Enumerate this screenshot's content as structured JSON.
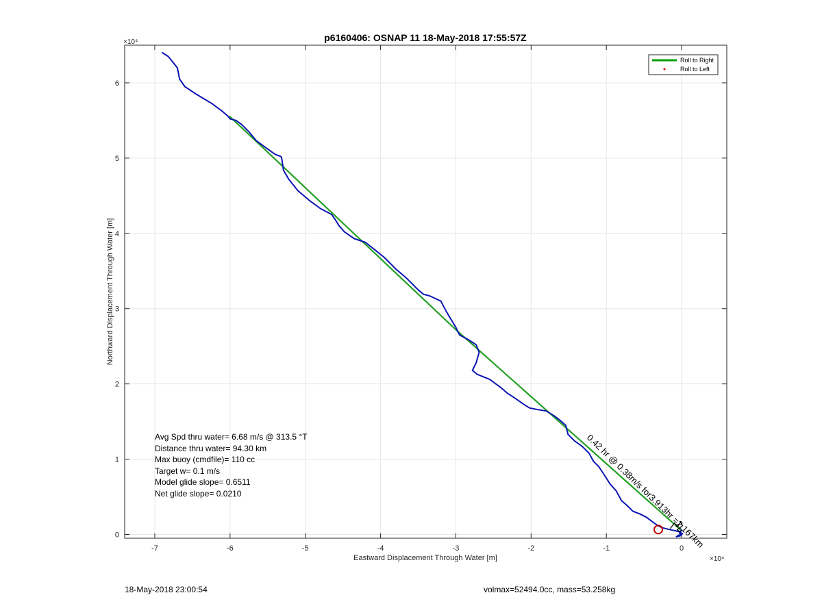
{
  "chart_data": {
    "type": "line",
    "title": "p6160406: OSNAP 11 18-May-2018 17:55:57Z",
    "xlabel": "Eastward Displacement Through Water [m]",
    "ylabel": "Northward Displacement Through Water [m]",
    "x_exponent_label": "×10⁴",
    "y_exponent_label": "×10⁴",
    "xlim": [
      -74000,
      6000
    ],
    "ylim": [
      -500,
      65000
    ],
    "x_ticks": [
      -70000,
      -60000,
      -50000,
      -40000,
      -30000,
      -20000,
      -10000,
      0
    ],
    "x_tick_labels": [
      "-7",
      "-6",
      "-5",
      "-4",
      "-3",
      "-2",
      "-1",
      "0"
    ],
    "y_ticks": [
      0,
      10000,
      20000,
      30000,
      40000,
      50000,
      60000
    ],
    "y_tick_labels": [
      "0",
      "1",
      "2",
      "3",
      "4",
      "5",
      "6"
    ],
    "grid": true,
    "legend_position": "top-right",
    "legend": [
      {
        "label": "Roll to Right",
        "color": "#00a000",
        "marker": "line"
      },
      {
        "label": "Roll to Left",
        "color": "#e00000",
        "marker": "dot"
      }
    ],
    "series": [
      {
        "name": "Roll to Right",
        "color": "#22a022",
        "x": [
          -60000,
          -30000,
          -15500,
          0
        ],
        "y": [
          55500,
          27200,
          14300,
          500
        ]
      },
      {
        "color": "#0a14b4",
        "x": [
          -69000,
          -68200,
          -67000,
          -66700,
          -66000,
          -64500,
          -62500,
          -61000,
          -60200,
          -60000,
          -59200,
          -58500,
          -57500,
          -56500,
          -55000,
          -54000,
          -53200,
          -53100,
          -52900,
          -52200,
          -51000,
          -49500,
          -48000,
          -46500,
          -46000,
          -45500,
          -44800,
          -43500,
          -42000,
          -41000,
          -39500,
          -38000,
          -36500,
          -35000,
          -34300,
          -33500,
          -32000,
          -31200,
          -30000,
          -29500,
          -28200,
          -27300,
          -26900,
          -27300,
          -27800,
          -27200,
          -25500,
          -24000,
          -23200,
          -22000,
          -21000,
          -20200,
          -19200,
          -18000,
          -17000,
          -16200,
          -15400,
          -15100,
          -14200,
          -13200,
          -12300,
          -11700,
          -11000,
          -10400,
          -9500,
          -8700,
          -8000,
          -7200,
          -6500,
          -5500,
          -4700,
          -3900,
          -3200,
          -2600,
          -1800,
          -900,
          -300,
          100,
          -200,
          -700,
          -400,
          0,
          -300,
          0
        ],
        "y": [
          64000,
          63500,
          62000,
          60500,
          59500,
          58500,
          57300,
          56200,
          55500,
          55200,
          55000,
          54500,
          53500,
          52300,
          51200,
          50500,
          50200,
          49800,
          48400,
          47200,
          45700,
          44400,
          43300,
          42500,
          41800,
          41000,
          40200,
          39300,
          38800,
          38000,
          36800,
          35300,
          34000,
          32500,
          31900,
          31700,
          31000,
          29500,
          27500,
          26500,
          25800,
          25200,
          24200,
          22800,
          21800,
          21300,
          20600,
          19500,
          18800,
          18000,
          17300,
          16800,
          16600,
          16400,
          15800,
          15200,
          14500,
          13300,
          12400,
          11700,
          10800,
          9700,
          9000,
          8100,
          6700,
          5800,
          4500,
          3800,
          3100,
          2700,
          2300,
          1700,
          1200,
          900,
          700,
          500,
          350,
          100,
          -200,
          -300,
          -100,
          0,
          200,
          600
        ]
      }
    ],
    "markers": [
      {
        "shape": "circle",
        "x": -3100,
        "y": 650,
        "color": "#c00000"
      }
    ],
    "annotation_text": "0.42 hr @ 0.38m/s for3.913hr =2.167km",
    "info_lines": [
      "Avg Spd thru water=  6.68 m/s @ 313.5 °T",
      "Distance thru water= 94.30 km",
      "Max buoy (cmdfile)= 110 cc",
      "Target w= 0.1 m/s",
      "Model glide slope= 0.6511",
      "Net glide slope= 0.0210"
    ]
  },
  "footer": {
    "left": "18-May-2018 23:00:54",
    "right": "volmax=52494.0cc, mass=53.258kg"
  }
}
